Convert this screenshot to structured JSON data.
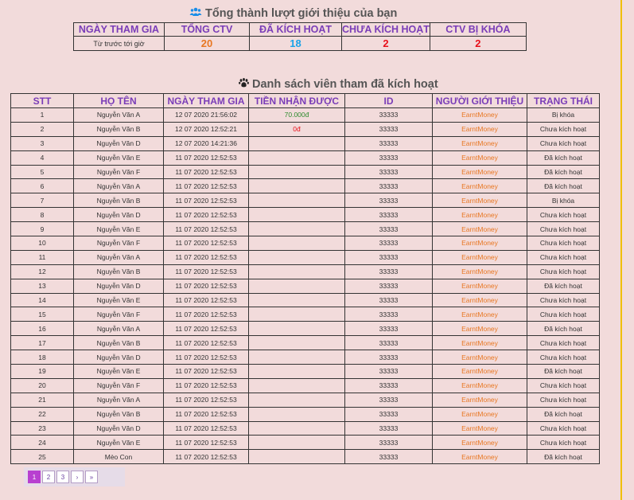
{
  "summary": {
    "title": "Tổng thành lượt giới thiệu của bạn",
    "headers": [
      "NGÀY THAM GIA",
      "TỔNG CTV",
      "ĐÃ KÍCH HOẠT",
      "CHƯA KÍCH HOẠT",
      "CTV BỊ KHÓA"
    ],
    "since": "Từ trước tới giờ",
    "total": "20",
    "activated": "18",
    "not_activated": "2",
    "locked": "2"
  },
  "list": {
    "title": "Danh sách viên tham đã kích hoạt",
    "headers": [
      "STT",
      "HỌ TÊN",
      "NGÀY THAM GIA",
      "TIỀN NHẬN ĐƯỢC",
      "ID",
      "NGƯỜI GIỚI THIỆU",
      "TRẠNG THÁI"
    ],
    "rows": [
      {
        "stt": "1",
        "name": "Nguyễn Văn A",
        "date": "12 07 2020 21:56:02",
        "amount": "70.000đ",
        "id": "33333",
        "ref": "EarntMoney",
        "status": "Bị khóa"
      },
      {
        "stt": "2",
        "name": "Nguyễn Văn B",
        "date": "12 07 2020 12:52:21",
        "amount": "0đ",
        "id": "33333",
        "ref": "EarntMoney",
        "status": "Chưa kích hoạt"
      },
      {
        "stt": "3",
        "name": "Nguyễn Văn D",
        "date": "12 07 2020 14:21:36",
        "amount": "",
        "id": "33333",
        "ref": "EarntMoney",
        "status": "Chưa kích hoạt"
      },
      {
        "stt": "4",
        "name": "Nguyễn Văn E",
        "date": "11 07 2020 12:52:53",
        "amount": "",
        "id": "33333",
        "ref": "EarntMoney",
        "status": "Đã kích hoạt"
      },
      {
        "stt": "5",
        "name": "Nguyễn Văn F",
        "date": "11 07 2020 12:52:53",
        "amount": "",
        "id": "33333",
        "ref": "EarntMoney",
        "status": "Đã kích hoạt"
      },
      {
        "stt": "6",
        "name": "Nguyễn Văn A",
        "date": "11 07 2020 12:52:53",
        "amount": "",
        "id": "33333",
        "ref": "EarntMoney",
        "status": "Đã kích hoạt"
      },
      {
        "stt": "7",
        "name": "Nguyễn Văn B",
        "date": "11 07 2020 12:52:53",
        "amount": "",
        "id": "33333",
        "ref": "EarntMoney",
        "status": "Bị khóa"
      },
      {
        "stt": "8",
        "name": "Nguyễn Văn D",
        "date": "11 07 2020 12:52:53",
        "amount": "",
        "id": "33333",
        "ref": "EarntMoney",
        "status": "Chưa kích hoạt"
      },
      {
        "stt": "9",
        "name": "Nguyễn Văn E",
        "date": "11 07 2020 12:52:53",
        "amount": "",
        "id": "33333",
        "ref": "EarntMoney",
        "status": "Chưa kích hoạt"
      },
      {
        "stt": "10",
        "name": "Nguyễn Văn F",
        "date": "11 07 2020 12:52:53",
        "amount": "",
        "id": "33333",
        "ref": "EarntMoney",
        "status": "Chưa kích hoạt"
      },
      {
        "stt": "11",
        "name": "Nguyễn Văn A",
        "date": "11 07 2020 12:52:53",
        "amount": "",
        "id": "33333",
        "ref": "EarntMoney",
        "status": "Chưa kích hoạt"
      },
      {
        "stt": "12",
        "name": "Nguyễn Văn B",
        "date": "11 07 2020 12:52:53",
        "amount": "",
        "id": "33333",
        "ref": "EarntMoney",
        "status": "Chưa kích hoạt"
      },
      {
        "stt": "13",
        "name": "Nguyễn Văn D",
        "date": "11 07 2020 12:52:53",
        "amount": "",
        "id": "33333",
        "ref": "EarntMoney",
        "status": "Đã kích hoạt"
      },
      {
        "stt": "14",
        "name": "Nguyễn Văn E",
        "date": "11 07 2020 12:52:53",
        "amount": "",
        "id": "33333",
        "ref": "EarntMoney",
        "status": "Chưa kích hoạt"
      },
      {
        "stt": "15",
        "name": "Nguyễn Văn F",
        "date": "11 07 2020 12:52:53",
        "amount": "",
        "id": "33333",
        "ref": "EarntMoney",
        "status": "Chưa kích hoạt"
      },
      {
        "stt": "16",
        "name": "Nguyễn Văn A",
        "date": "11 07 2020 12:52:53",
        "amount": "",
        "id": "33333",
        "ref": "EarntMoney",
        "status": "Đã kích hoạt"
      },
      {
        "stt": "17",
        "name": "Nguyễn Văn B",
        "date": "11 07 2020 12:52:53",
        "amount": "",
        "id": "33333",
        "ref": "EarntMoney",
        "status": "Chưa kích hoạt"
      },
      {
        "stt": "18",
        "name": "Nguyễn Văn D",
        "date": "11 07 2020 12:52:53",
        "amount": "",
        "id": "33333",
        "ref": "EarntMoney",
        "status": "Chưa kích hoạt"
      },
      {
        "stt": "19",
        "name": "Nguyễn Văn E",
        "date": "11 07 2020 12:52:53",
        "amount": "",
        "id": "33333",
        "ref": "EarntMoney",
        "status": "Đã kích hoạt"
      },
      {
        "stt": "20",
        "name": "Nguyễn Văn F",
        "date": "11 07 2020 12:52:53",
        "amount": "",
        "id": "33333",
        "ref": "EarntMoney",
        "status": "Chưa kích hoạt"
      },
      {
        "stt": "21",
        "name": "Nguyễn Văn A",
        "date": "11 07 2020 12:52:53",
        "amount": "",
        "id": "33333",
        "ref": "EarntMoney",
        "status": "Chưa kích hoạt"
      },
      {
        "stt": "22",
        "name": "Nguyễn Văn B",
        "date": "11 07 2020 12:52:53",
        "amount": "",
        "id": "33333",
        "ref": "EarntMoney",
        "status": "Đã kích hoạt"
      },
      {
        "stt": "23",
        "name": "Nguyễn Văn D",
        "date": "11 07 2020 12:52:53",
        "amount": "",
        "id": "33333",
        "ref": "EarntMoney",
        "status": "Chưa kích hoạt"
      },
      {
        "stt": "24",
        "name": "Nguyễn Văn E",
        "date": "11 07 2020 12:52:53",
        "amount": "",
        "id": "33333",
        "ref": "EarntMoney",
        "status": "Chưa kích hoạt"
      },
      {
        "stt": "25",
        "name": "Mèo Con",
        "date": "11 07 2020 12:52:53",
        "amount": "",
        "id": "33333",
        "ref": "EarntMoney",
        "status": "Đã kích hoạt"
      }
    ]
  },
  "pagination": {
    "pages": [
      "1",
      "2",
      "3"
    ],
    "next": "›",
    "last": "»",
    "active": "1"
  },
  "colors": {
    "background": "#f2dbdb",
    "header_text": "#7a3db8",
    "orange": "#e87722",
    "blue": "#1aa3e8",
    "red": "#e8101a",
    "green": "#2e8b2e",
    "active_page": "#b83fd0"
  },
  "icons": {
    "summary_title": "users-icon",
    "list_title": "paw-icon"
  }
}
